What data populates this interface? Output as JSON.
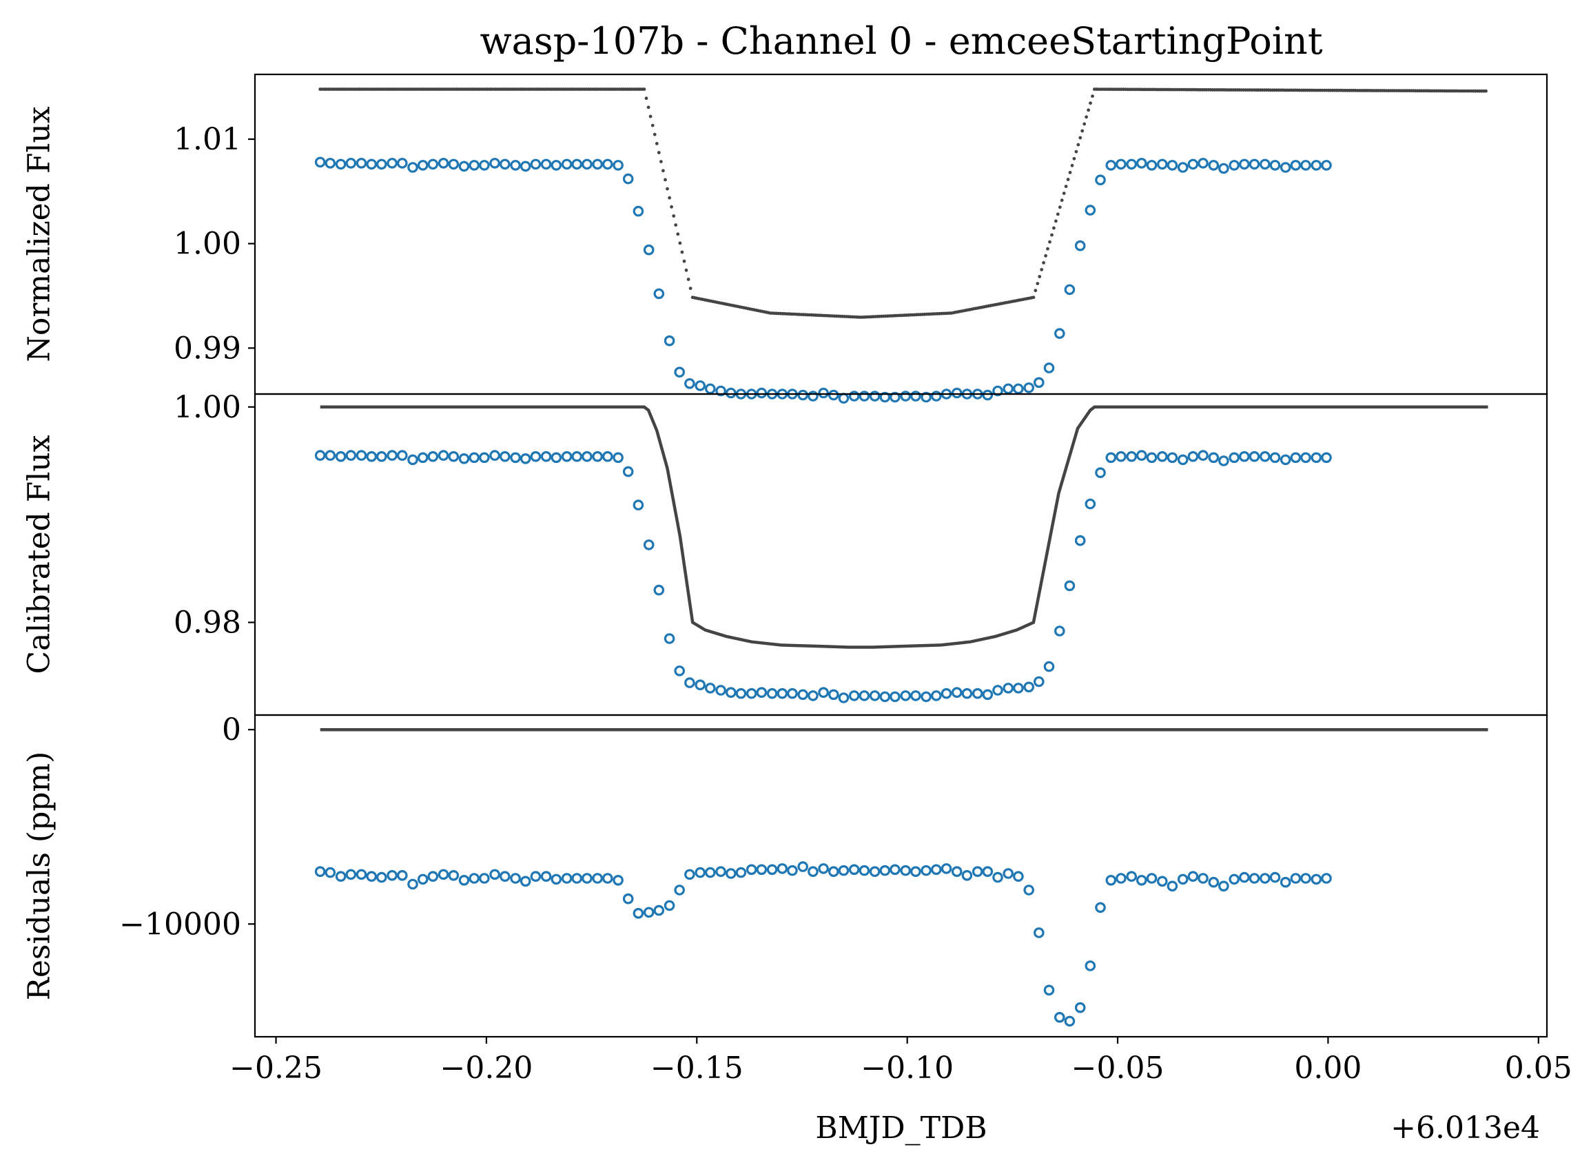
{
  "chart_data": {
    "type": "scatter",
    "title": "wasp-107b - Channel 0 - emceeStartingPoint",
    "xlabel": "BMJD_TDB",
    "x_offset_text": "+6.013e4",
    "xlim": [
      -0.255,
      0.052
    ],
    "x_ticks": [
      -0.25,
      -0.2,
      -0.15,
      -0.1,
      -0.05,
      0.0,
      0.05
    ],
    "x_tick_labels": [
      "−0.25",
      "−0.20",
      "−0.15",
      "−0.10",
      "−0.05",
      "0.00",
      "0.05"
    ],
    "colors": {
      "data": "#1f77b4",
      "model": "#444444",
      "frame": "#000000"
    },
    "panels": [
      {
        "id": "normalized",
        "ylabel": "Normalized Flux",
        "ylim": [
          0.9856,
          1.0162
        ],
        "y_ticks": [
          0.99,
          1.0,
          1.01
        ],
        "y_tick_labels": [
          "0.99",
          "1.00",
          "1.01"
        ],
        "model_style": "dots",
        "series": [
          {
            "kind": "model",
            "x": [
              -0.2395,
              -0.1625,
              -0.151,
              -0.1325,
              -0.111,
              -0.0895,
              -0.07,
              -0.0555,
              0.038
            ],
            "y": [
              1.01478,
              1.01478,
              0.99485,
              0.99335,
              0.99295,
              0.99335,
              0.99485,
              1.01478,
              1.0146
            ]
          },
          {
            "kind": "data",
            "x": [
              -0.2395,
              -0.2371,
              -0.2346,
              -0.2322,
              -0.2297,
              -0.2273,
              -0.2249,
              -0.2224,
              -0.22,
              -0.2175,
              -0.2151,
              -0.2127,
              -0.2102,
              -0.2078,
              -0.2053,
              -0.2029,
              -0.2005,
              -0.198,
              -0.1956,
              -0.1931,
              -0.1907,
              -0.1883,
              -0.1858,
              -0.1834,
              -0.1809,
              -0.1785,
              -0.1761,
              -0.1736,
              -0.1712,
              -0.1687,
              -0.1663,
              -0.1639,
              -0.1614,
              -0.159,
              -0.1565,
              -0.1541,
              -0.1517,
              -0.1492,
              -0.1468,
              -0.1443,
              -0.1419,
              -0.1395,
              -0.137,
              -0.1346,
              -0.1321,
              -0.1297,
              -0.1273,
              -0.1248,
              -0.1224,
              -0.1199,
              -0.1175,
              -0.1151,
              -0.1126,
              -0.1102,
              -0.1077,
              -0.1053,
              -0.1029,
              -0.1004,
              -0.098,
              -0.0955,
              -0.0931,
              -0.0907,
              -0.0882,
              -0.0858,
              -0.0833,
              -0.0809,
              -0.0785,
              -0.076,
              -0.0736,
              -0.0711,
              -0.0687,
              -0.0663,
              -0.0638,
              -0.0614,
              -0.0589,
              -0.0565,
              -0.0541,
              -0.0516,
              -0.0492,
              -0.0467,
              -0.0443,
              -0.0419,
              -0.0394,
              -0.037,
              -0.0345,
              -0.0321,
              -0.0297,
              -0.0272,
              -0.0248,
              -0.0223,
              -0.0199,
              -0.0175,
              -0.015,
              -0.0126,
              -0.0101,
              -0.0077,
              -0.0053,
              -0.0028,
              -0.0004
            ],
            "y": [
              1.0078,
              1.0077,
              1.0076,
              1.0077,
              1.0077,
              1.0076,
              1.0076,
              1.0077,
              1.0077,
              1.0073,
              1.0075,
              1.0076,
              1.0077,
              1.0076,
              1.0074,
              1.0075,
              1.0075,
              1.0077,
              1.0076,
              1.0075,
              1.0074,
              1.0076,
              1.0076,
              1.0075,
              1.0076,
              1.0076,
              1.0076,
              1.0076,
              1.0076,
              1.0075,
              1.0062,
              1.0031,
              0.9994,
              0.9952,
              0.9907,
              0.9877,
              0.9866,
              0.9864,
              0.9861,
              0.9859,
              0.9857,
              0.9856,
              0.9856,
              0.9857,
              0.9856,
              0.9856,
              0.9856,
              0.9855,
              0.9854,
              0.9857,
              0.9855,
              0.9852,
              0.9854,
              0.9854,
              0.9854,
              0.9853,
              0.9853,
              0.9854,
              0.9854,
              0.9853,
              0.9854,
              0.9856,
              0.9857,
              0.9856,
              0.9856,
              0.9855,
              0.9859,
              0.9861,
              0.9861,
              0.9862,
              0.9867,
              0.9881,
              0.9914,
              0.9956,
              0.9998,
              1.0032,
              1.0061,
              1.0075,
              1.0076,
              1.0076,
              1.0077,
              1.0075,
              1.0076,
              1.0075,
              1.0073,
              1.0076,
              1.0077,
              1.0075,
              1.0072,
              1.0075,
              1.0076,
              1.0076,
              1.0076,
              1.0075,
              1.0073,
              1.0075,
              1.0075,
              1.0075,
              1.0075
            ]
          }
        ]
      },
      {
        "id": "calibrated",
        "ylabel": "Calibrated Flux",
        "ylim": [
          0.9714,
          1.0012
        ],
        "y_ticks": [
          0.98,
          1.0
        ],
        "y_tick_labels": [
          "0.98",
          "1.00"
        ],
        "model_style": "line",
        "series": [
          {
            "kind": "model",
            "x": [
              -0.2395,
              -0.1625,
              -0.1615,
              -0.1595,
              -0.157,
              -0.154,
              -0.151,
              -0.148,
              -0.143,
              -0.137,
              -0.13,
              -0.122,
              -0.114,
              -0.111,
              -0.108,
              -0.1,
              -0.092,
              -0.085,
              -0.079,
              -0.074,
              -0.07,
              -0.067,
              -0.064,
              -0.0595,
              -0.0565,
              -0.0555,
              0.038
            ],
            "y": [
              1.0,
              1.0,
              0.9997,
              0.9978,
              0.9943,
              0.988,
              0.98,
              0.9793,
              0.9787,
              0.9782,
              0.9779,
              0.9778,
              0.9777,
              0.9777,
              0.9777,
              0.9778,
              0.9779,
              0.9782,
              0.9787,
              0.9793,
              0.98,
              0.986,
              0.992,
              0.998,
              0.9997,
              1.0,
              1.0
            ]
          },
          {
            "kind": "data",
            "x": [
              -0.2395,
              -0.2371,
              -0.2346,
              -0.2322,
              -0.2297,
              -0.2273,
              -0.2249,
              -0.2224,
              -0.22,
              -0.2175,
              -0.2151,
              -0.2127,
              -0.2102,
              -0.2078,
              -0.2053,
              -0.2029,
              -0.2005,
              -0.198,
              -0.1956,
              -0.1931,
              -0.1907,
              -0.1883,
              -0.1858,
              -0.1834,
              -0.1809,
              -0.1785,
              -0.1761,
              -0.1736,
              -0.1712,
              -0.1687,
              -0.1663,
              -0.1639,
              -0.1614,
              -0.159,
              -0.1565,
              -0.1541,
              -0.1517,
              -0.1492,
              -0.1468,
              -0.1443,
              -0.1419,
              -0.1395,
              -0.137,
              -0.1346,
              -0.1321,
              -0.1297,
              -0.1273,
              -0.1248,
              -0.1224,
              -0.1199,
              -0.1175,
              -0.1151,
              -0.1126,
              -0.1102,
              -0.1077,
              -0.1053,
              -0.1029,
              -0.1004,
              -0.098,
              -0.0955,
              -0.0931,
              -0.0907,
              -0.0882,
              -0.0858,
              -0.0833,
              -0.0809,
              -0.0785,
              -0.076,
              -0.0736,
              -0.0711,
              -0.0687,
              -0.0663,
              -0.0638,
              -0.0614,
              -0.0589,
              -0.0565,
              -0.0541,
              -0.0516,
              -0.0492,
              -0.0467,
              -0.0443,
              -0.0419,
              -0.0394,
              -0.037,
              -0.0345,
              -0.0321,
              -0.0297,
              -0.0272,
              -0.0248,
              -0.0223,
              -0.0199,
              -0.0175,
              -0.015,
              -0.0126,
              -0.0101,
              -0.0077,
              -0.0053,
              -0.0028,
              -0.0004
            ],
            "y": [
              0.9955,
              0.9955,
              0.9954,
              0.9955,
              0.9955,
              0.9954,
              0.9954,
              0.9955,
              0.9955,
              0.9951,
              0.9953,
              0.9954,
              0.9955,
              0.9954,
              0.9952,
              0.9953,
              0.9953,
              0.9955,
              0.9954,
              0.9953,
              0.9952,
              0.9954,
              0.9954,
              0.9953,
              0.9954,
              0.9954,
              0.9954,
              0.9954,
              0.9954,
              0.9953,
              0.994,
              0.9909,
              0.9872,
              0.983,
              0.9785,
              0.9755,
              0.9744,
              0.9742,
              0.9739,
              0.9737,
              0.9735,
              0.9734,
              0.9734,
              0.9735,
              0.9734,
              0.9734,
              0.9734,
              0.9733,
              0.9732,
              0.9735,
              0.9733,
              0.973,
              0.9732,
              0.9732,
              0.9732,
              0.9731,
              0.9731,
              0.9732,
              0.9732,
              0.9731,
              0.9732,
              0.9734,
              0.9735,
              0.9734,
              0.9734,
              0.9733,
              0.9737,
              0.9739,
              0.9739,
              0.974,
              0.9745,
              0.9759,
              0.9792,
              0.9834,
              0.9876,
              0.991,
              0.9939,
              0.9953,
              0.9954,
              0.9954,
              0.9955,
              0.9953,
              0.9954,
              0.9953,
              0.9951,
              0.9954,
              0.9955,
              0.9953,
              0.995,
              0.9953,
              0.9954,
              0.9954,
              0.9954,
              0.9953,
              0.9951,
              0.9953,
              0.9953,
              0.9953,
              0.9953
            ]
          }
        ]
      },
      {
        "id": "residuals",
        "ylabel": "Residuals (ppm)",
        "ylim": [
          -15800,
          750
        ],
        "y_ticks": [
          0,
          -10000
        ],
        "y_tick_labels": [
          "0",
          "−10000"
        ],
        "model_style": "line",
        "series": [
          {
            "kind": "model",
            "x": [
              -0.2395,
              0.038
            ],
            "y": [
              0,
              0
            ]
          },
          {
            "kind": "data",
            "x": [
              -0.2395,
              -0.2371,
              -0.2346,
              -0.2322,
              -0.2297,
              -0.2273,
              -0.2249,
              -0.2224,
              -0.22,
              -0.2175,
              -0.2151,
              -0.2127,
              -0.2102,
              -0.2078,
              -0.2053,
              -0.2029,
              -0.2005,
              -0.198,
              -0.1956,
              -0.1931,
              -0.1907,
              -0.1883,
              -0.1858,
              -0.1834,
              -0.1809,
              -0.1785,
              -0.1761,
              -0.1736,
              -0.1712,
              -0.1687,
              -0.1663,
              -0.1639,
              -0.1614,
              -0.159,
              -0.1565,
              -0.1541,
              -0.1517,
              -0.1492,
              -0.1468,
              -0.1443,
              -0.1419,
              -0.1395,
              -0.137,
              -0.1346,
              -0.1321,
              -0.1297,
              -0.1273,
              -0.1248,
              -0.1224,
              -0.1199,
              -0.1175,
              -0.1151,
              -0.1126,
              -0.1102,
              -0.1077,
              -0.1053,
              -0.1029,
              -0.1004,
              -0.098,
              -0.0955,
              -0.0931,
              -0.0907,
              -0.0882,
              -0.0858,
              -0.0833,
              -0.0809,
              -0.0785,
              -0.076,
              -0.0736,
              -0.0711,
              -0.0687,
              -0.0663,
              -0.0638,
              -0.0614,
              -0.0589,
              -0.0565,
              -0.0541,
              -0.0516,
              -0.0492,
              -0.0467,
              -0.0443,
              -0.0419,
              -0.0394,
              -0.037,
              -0.0345,
              -0.0321,
              -0.0297,
              -0.0272,
              -0.0248,
              -0.0223,
              -0.0199,
              -0.0175,
              -0.015,
              -0.0126,
              -0.0101,
              -0.0077,
              -0.0053,
              -0.0028,
              -0.0004
            ],
            "y": [
              -7300,
              -7350,
              -7550,
              -7450,
              -7450,
              -7550,
              -7600,
              -7500,
              -7500,
              -7950,
              -7700,
              -7550,
              -7450,
              -7500,
              -7750,
              -7650,
              -7650,
              -7450,
              -7550,
              -7650,
              -7800,
              -7550,
              -7550,
              -7700,
              -7650,
              -7650,
              -7650,
              -7650,
              -7650,
              -7750,
              -8700,
              -9450,
              -9400,
              -9300,
              -9050,
              -8250,
              -7450,
              -7350,
              -7350,
              -7300,
              -7400,
              -7350,
              -7200,
              -7200,
              -7200,
              -7150,
              -7250,
              -7050,
              -7300,
              -7150,
              -7300,
              -7250,
              -7200,
              -7250,
              -7300,
              -7250,
              -7200,
              -7250,
              -7300,
              -7250,
              -7200,
              -7150,
              -7300,
              -7500,
              -7300,
              -7300,
              -7600,
              -7400,
              -7550,
              -8250,
              -10450,
              -13400,
              -14800,
              -15000,
              -14300,
              -12150,
              -9150,
              -7750,
              -7650,
              -7550,
              -7750,
              -7650,
              -7800,
              -8050,
              -7700,
              -7550,
              -7650,
              -7850,
              -8050,
              -7700,
              -7600,
              -7650,
              -7650,
              -7600,
              -7850,
              -7650,
              -7650,
              -7700,
              -7650
            ]
          }
        ]
      }
    ]
  }
}
